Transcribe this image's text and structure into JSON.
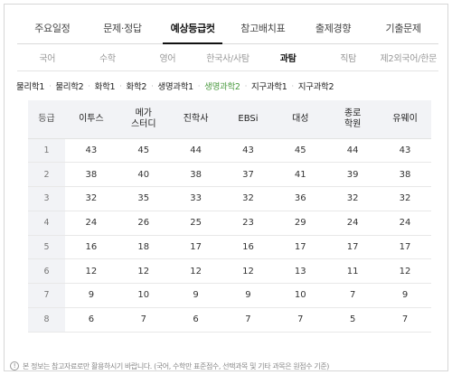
{
  "main_tabs": [
    {
      "label": "주요일정",
      "active": false
    },
    {
      "label": "문제·정답",
      "active": false
    },
    {
      "label": "예상등급컷",
      "active": true
    },
    {
      "label": "참고배치표",
      "active": false
    },
    {
      "label": "출제경향",
      "active": false
    },
    {
      "label": "기출문제",
      "active": false
    }
  ],
  "sub_tabs": [
    {
      "label": "국어",
      "active": false
    },
    {
      "label": "수학",
      "active": false
    },
    {
      "label": "영어",
      "active": false
    },
    {
      "label": "한국사/사탐",
      "active": false
    },
    {
      "label": "과탐",
      "active": true
    },
    {
      "label": "직탐",
      "active": false
    },
    {
      "label": "제2외국어/한문",
      "active": false
    }
  ],
  "subjects": [
    {
      "label": "물리학1",
      "active": false
    },
    {
      "label": "물리학2",
      "active": false
    },
    {
      "label": "화학1",
      "active": false
    },
    {
      "label": "화학2",
      "active": false
    },
    {
      "label": "생명과학1",
      "active": false
    },
    {
      "label": "생명과학2",
      "active": true
    },
    {
      "label": "지구과학1",
      "active": false
    },
    {
      "label": "지구과학2",
      "active": false
    }
  ],
  "subject_separator": "·",
  "table": {
    "grade_header": "등급",
    "columns": [
      "이투스",
      "메가\n스터디",
      "진학사",
      "EBSi",
      "대성",
      "종로\n학원",
      "유웨이"
    ],
    "rows": [
      {
        "grade": "1",
        "values": [
          "43",
          "45",
          "44",
          "43",
          "45",
          "44",
          "43"
        ]
      },
      {
        "grade": "2",
        "values": [
          "38",
          "40",
          "38",
          "37",
          "41",
          "39",
          "38"
        ]
      },
      {
        "grade": "3",
        "values": [
          "32",
          "35",
          "33",
          "32",
          "36",
          "32",
          "32"
        ]
      },
      {
        "grade": "4",
        "values": [
          "24",
          "26",
          "25",
          "23",
          "29",
          "24",
          "24"
        ]
      },
      {
        "grade": "5",
        "values": [
          "16",
          "18",
          "17",
          "16",
          "17",
          "17",
          "17"
        ]
      },
      {
        "grade": "6",
        "values": [
          "12",
          "12",
          "12",
          "12",
          "13",
          "11",
          "12"
        ]
      },
      {
        "grade": "7",
        "values": [
          "9",
          "10",
          "9",
          "9",
          "10",
          "7",
          "9"
        ]
      },
      {
        "grade": "8",
        "values": [
          "6",
          "7",
          "6",
          "7",
          "7",
          "5",
          "7"
        ]
      }
    ]
  },
  "footer": {
    "icon_symbol": "!",
    "text": "본 정보는 참고자료로만 활용하시기 바랍니다. (국어, 수학만 표준점수, 선택과목 및 기타 과목은 원점수 기준)"
  },
  "colors": {
    "active_subject": "#4a9a3f",
    "header_bg": "#f2f3f6"
  }
}
